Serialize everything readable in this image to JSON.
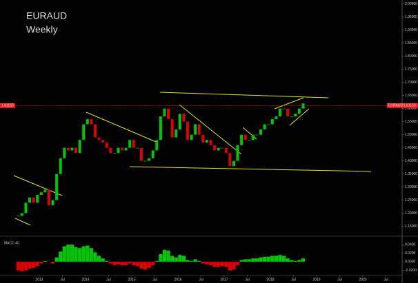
{
  "chart_data": [
    {
      "type": "candlestick",
      "title": "EURAUD",
      "subtitle": "Weekly",
      "x": [
        "2012-07",
        "2012-08",
        "2012-09",
        "2012-10",
        "2012-11",
        "2012-12",
        "2013-01",
        "2013-02",
        "2013-03",
        "2013-04",
        "2013-05",
        "2013-06",
        "2013-07",
        "2013-08",
        "2013-09",
        "2013-10",
        "2013-11",
        "2013-12",
        "2014-01",
        "2014-02",
        "2014-03",
        "2014-04",
        "2014-05",
        "2014-06",
        "2014-07",
        "2014-08",
        "2014-09",
        "2014-10",
        "2014-11",
        "2014-12",
        "2015-01",
        "2015-02",
        "2015-03",
        "2015-04",
        "2015-05",
        "2015-06",
        "2015-07",
        "2015-08",
        "2015-09",
        "2015-10",
        "2015-11",
        "2015-12",
        "2016-01",
        "2016-02",
        "2016-03",
        "2016-04",
        "2016-05",
        "2016-06",
        "2016-07",
        "2016-08",
        "2016-09",
        "2016-10",
        "2016-11",
        "2016-12",
        "2017-01",
        "2017-02",
        "2017-03",
        "2017-04",
        "2017-05",
        "2017-06",
        "2017-07",
        "2017-08",
        "2017-09",
        "2017-10",
        "2017-11",
        "2017-12",
        "2018-01",
        "2018-02",
        "2018-03",
        "2018-04",
        "2018-05",
        "2018-06",
        "2018-07",
        "2018-08",
        "2018-09"
      ],
      "values": [
        1.19,
        1.2,
        1.24,
        1.26,
        1.24,
        1.27,
        1.28,
        1.29,
        1.23,
        1.25,
        1.35,
        1.41,
        1.45,
        1.44,
        1.45,
        1.43,
        1.48,
        1.54,
        1.56,
        1.54,
        1.49,
        1.48,
        1.47,
        1.45,
        1.43,
        1.43,
        1.45,
        1.44,
        1.45,
        1.48,
        1.45,
        1.45,
        1.4,
        1.4,
        1.41,
        1.44,
        1.48,
        1.57,
        1.6,
        1.56,
        1.49,
        1.52,
        1.58,
        1.55,
        1.48,
        1.5,
        1.54,
        1.5,
        1.47,
        1.48,
        1.46,
        1.44,
        1.45,
        1.45,
        1.43,
        1.38,
        1.4,
        1.46,
        1.5,
        1.48,
        1.48,
        1.5,
        1.5,
        1.52,
        1.54,
        1.54,
        1.56,
        1.57,
        1.6,
        1.6,
        1.57,
        1.57,
        1.58,
        1.6,
        1.62
      ],
      "up_color": "#00c800",
      "down_color": "#e00000",
      "ylim": [
        1.12,
        2.01
      ],
      "yticks": [
        {
          "value": 1.15,
          "label": "1.15000"
        },
        {
          "value": 1.2,
          "label": "1.20000"
        },
        {
          "value": 1.25,
          "label": "1.25000"
        },
        {
          "value": 1.3,
          "label": "1.30000"
        },
        {
          "value": 1.35,
          "label": "1.35000"
        },
        {
          "value": 1.4,
          "label": "1.40000"
        },
        {
          "value": 1.45,
          "label": "1.45000"
        },
        {
          "value": 1.5,
          "label": "1.50000"
        },
        {
          "value": 1.55,
          "label": "1.55000"
        },
        {
          "value": 1.6,
          "label": "1.60000"
        },
        {
          "value": 1.65,
          "label": "1.65000"
        },
        {
          "value": 1.7,
          "label": "1.70000"
        },
        {
          "value": 1.75,
          "label": "1.75000"
        },
        {
          "value": 1.8,
          "label": "1.80000"
        },
        {
          "value": 1.85,
          "label": "1.85000"
        },
        {
          "value": 1.9,
          "label": "1.90000"
        },
        {
          "value": 1.95,
          "label": "1.95000"
        },
        {
          "value": 2.0,
          "label": "2.00000"
        }
      ],
      "xticks": [
        {
          "value": "2013-01",
          "label": "2013"
        },
        {
          "value": "2013-07",
          "label": "Jul"
        },
        {
          "value": "2014-01",
          "label": "2014"
        },
        {
          "value": "2014-07",
          "label": "Jul"
        },
        {
          "value": "2015-01",
          "label": "2015"
        },
        {
          "value": "2015-07",
          "label": "Jul"
        },
        {
          "value": "2016-01",
          "label": "2016"
        },
        {
          "value": "2016-07",
          "label": "Jul"
        },
        {
          "value": "2017-01",
          "label": "2017"
        },
        {
          "value": "2017-07",
          "label": "Jul"
        },
        {
          "value": "2018-01",
          "label": "2018"
        },
        {
          "value": "2018-07",
          "label": "Jul"
        },
        {
          "value": "2019-01",
          "label": "2019"
        },
        {
          "value": "2019-07",
          "label": "Jul"
        },
        {
          "value": "2020-01",
          "label": "2020"
        },
        {
          "value": "2020-07",
          "label": "Jul"
        }
      ],
      "last_price": {
        "value": 1.6115,
        "label": "1.61150"
      },
      "last_price_color": "#ff1a1a"
    },
    {
      "type": "bar",
      "title": "MACD 4C",
      "values": [
        -0.02,
        -0.022,
        -0.02,
        -0.016,
        -0.014,
        -0.01,
        -0.004,
        0.002,
        0.0,
        -0.004,
        0.01,
        0.024,
        0.036,
        0.04,
        0.04,
        0.034,
        0.032,
        0.036,
        0.038,
        0.032,
        0.022,
        0.014,
        0.008,
        0.002,
        -0.004,
        -0.008,
        -0.006,
        -0.008,
        -0.008,
        -0.004,
        -0.008,
        -0.01,
        -0.016,
        -0.018,
        -0.014,
        -0.008,
        0.002,
        0.018,
        0.028,
        0.026,
        0.014,
        0.01,
        0.016,
        0.014,
        0.004,
        0.002,
        0.006,
        0.002,
        -0.004,
        -0.006,
        -0.008,
        -0.012,
        -0.012,
        -0.01,
        -0.012,
        -0.02,
        -0.018,
        -0.008,
        0.004,
        0.006,
        0.006,
        0.008,
        0.008,
        0.01,
        0.012,
        0.012,
        0.014,
        0.014,
        0.016,
        0.014,
        0.008,
        0.004,
        0.002,
        0.004,
        0.008
      ],
      "up_color": "#00c800",
      "down_color": "#e00000",
      "ylim": [
        -0.03,
        0.05
      ],
      "yticks": [
        {
          "value": -0.02,
          "label": "-0.0200"
        },
        {
          "value": 0,
          "label": "0.0000"
        },
        {
          "value": 0.02,
          "label": "0.0200"
        },
        {
          "value": 0.04,
          "label": "0.0400"
        }
      ]
    }
  ]
}
